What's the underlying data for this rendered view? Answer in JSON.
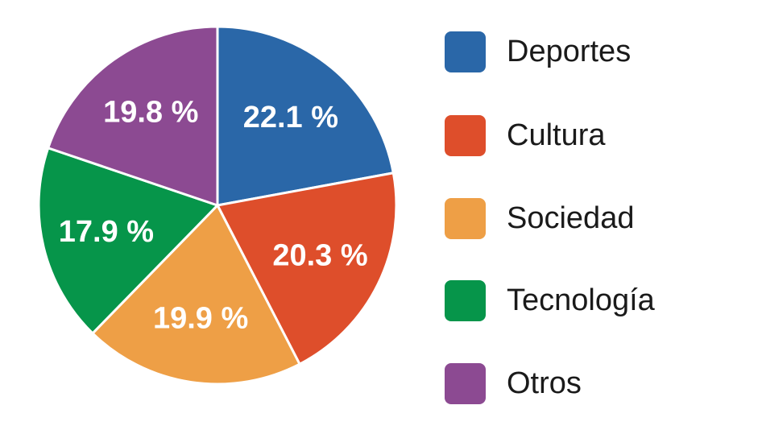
{
  "chart_data": {
    "type": "pie",
    "title": "",
    "categories": [
      "Deportes",
      "Cultura",
      "Sociedad",
      "Tecnología",
      "Otros"
    ],
    "values": [
      22.1,
      20.3,
      19.9,
      17.9,
      19.8
    ],
    "labels": [
      "22.1 %",
      "20.3 %",
      "19.9 %",
      "17.9 %",
      "19.8 %"
    ],
    "colors": [
      "#2a67a8",
      "#de4e2b",
      "#ee9f46",
      "#06954a",
      "#8c4a92"
    ],
    "start_angle_deg": 0,
    "direction": "clockwise",
    "legend_position": "right"
  }
}
